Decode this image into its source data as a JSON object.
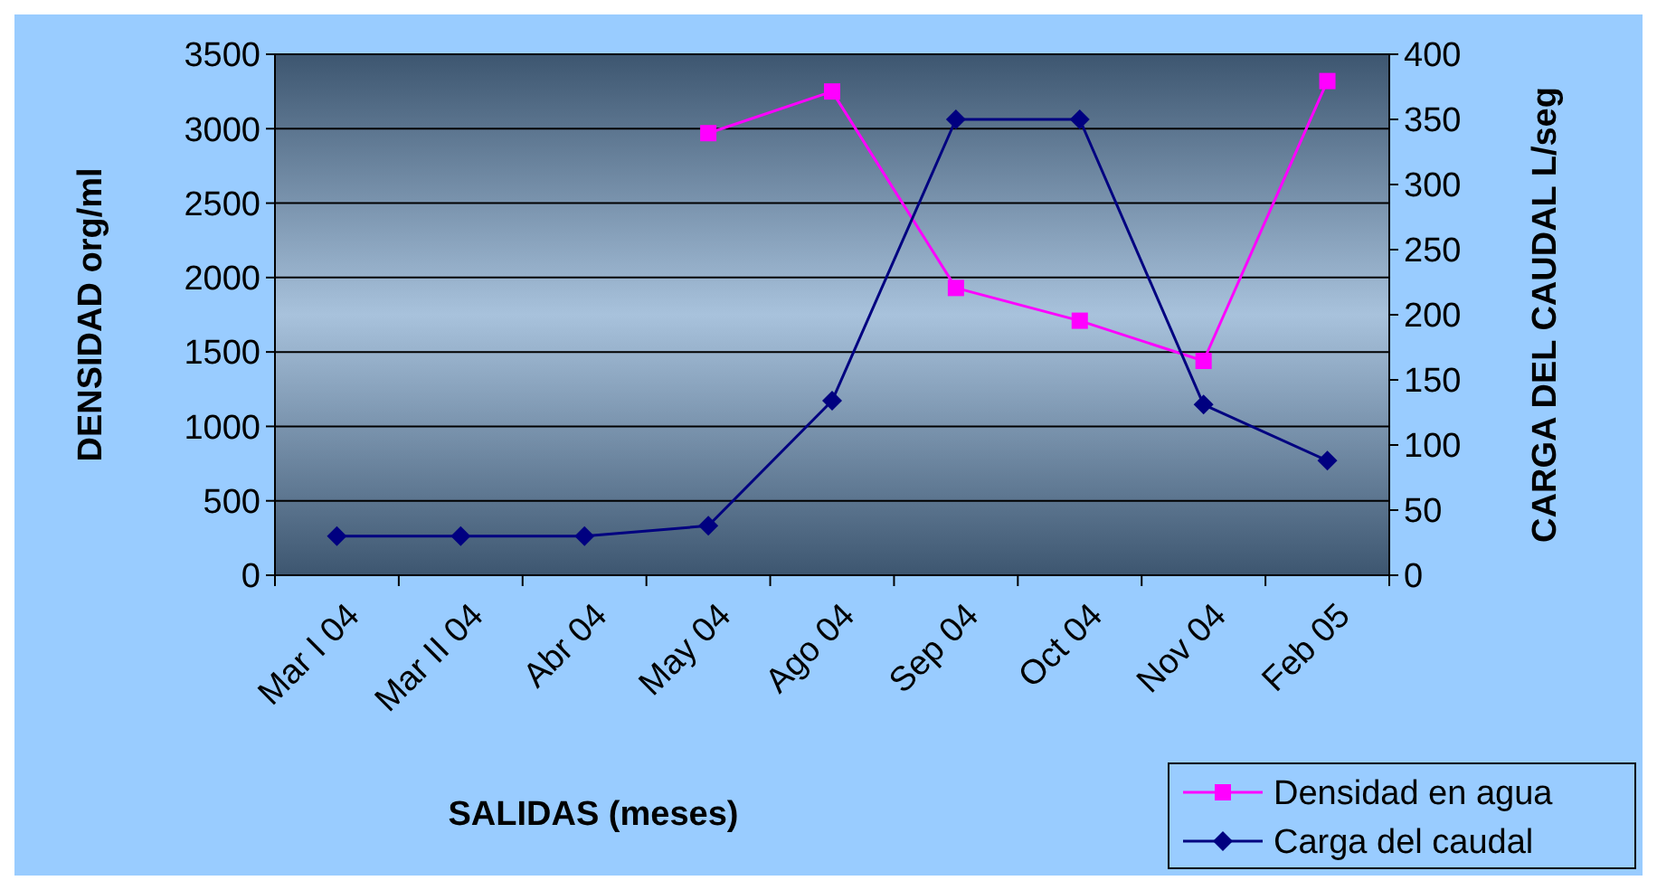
{
  "chart_data": {
    "type": "line",
    "xlabel": "SALIDAS (meses)",
    "ylabel": "DENSIDAD org/ml",
    "y2label": "CARGA DEL CAUDAL L/seg",
    "categories": [
      "Mar I 04",
      "Mar II 04",
      "Abr 04",
      "May 04",
      "Ago 04",
      "Sep 04",
      "Oct 04",
      "Nov 04",
      "Feb 05"
    ],
    "series": [
      {
        "name": "Densidad en agua",
        "color": "#ff00ff",
        "marker": "square",
        "values": [
          null,
          null,
          null,
          2970,
          3250,
          1930,
          1710,
          1440,
          3320
        ]
      },
      {
        "name": "Carga del caudal",
        "color": "#000080",
        "marker": "diamond",
        "axis": "y2",
        "values": [
          30,
          30,
          30,
          38,
          134,
          350,
          350,
          131,
          88
        ]
      }
    ],
    "ylim": [
      0,
      3500
    ],
    "yticks": [
      0,
      500,
      1000,
      1500,
      2000,
      2500,
      3000,
      3500
    ],
    "y2lim": [
      0,
      400
    ],
    "y2ticks": [
      0,
      50,
      100,
      150,
      200,
      250,
      300,
      350,
      400
    ],
    "grid": "y",
    "legend": "bottom right"
  }
}
